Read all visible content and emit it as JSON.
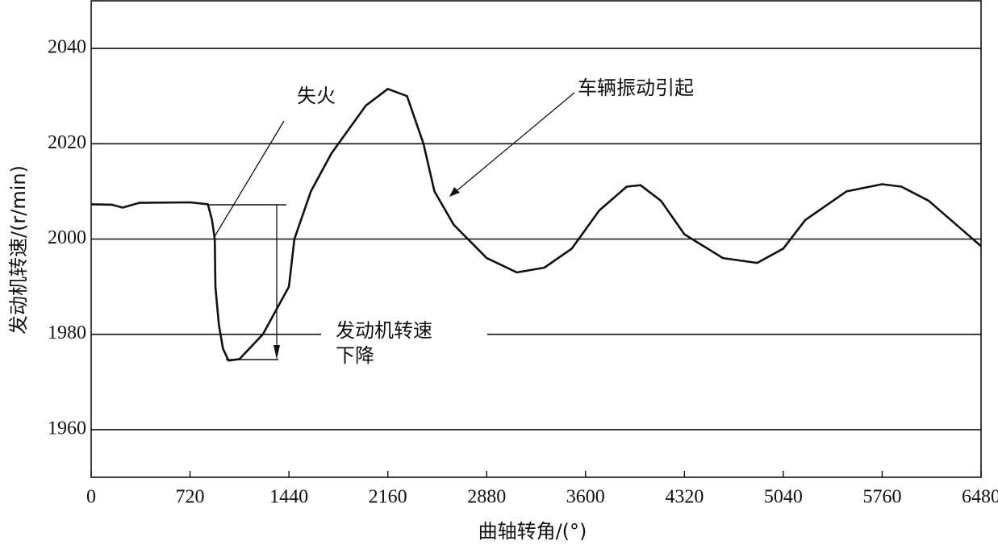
{
  "chart_data": {
    "type": "line",
    "x_label": "曲轴转角/(°)",
    "y_label": "发动机转速/(r/min)",
    "annotations": [
      "失火",
      "车辆振动引起",
      "发动机转速",
      "下降"
    ],
    "x": [
      0,
      150,
      230,
      350,
      720,
      850,
      880,
      900,
      905,
      930,
      960,
      1000,
      1080,
      1250,
      1440,
      1480,
      1600,
      1750,
      2000,
      2160,
      2300,
      2420,
      2500,
      2640,
      2880,
      3100,
      3300,
      3500,
      3700,
      3900,
      4000,
      4150,
      4320,
      4600,
      4850,
      5040,
      5200,
      5500,
      5760,
      5900,
      6100,
      6300,
      6480
    ],
    "values": [
      2007.3,
      2007.2,
      2006.6,
      2007.6,
      2007.7,
      2007.3,
      2004,
      2000,
      1990,
      1982,
      1977,
      1974.5,
      1974.8,
      1980,
      1990,
      2000,
      2010,
      2018,
      2028,
      2031.5,
      2030,
      2020,
      2010,
      2003,
      1996,
      1993,
      1994,
      1998,
      2006,
      2011,
      2011.3,
      2008,
      2001,
      1996,
      1995,
      1998,
      2004,
      2010,
      2011.5,
      2011,
      2008,
      2003,
      1998.5
    ],
    "color": "#111111",
    "xlim": [
      0,
      6480
    ],
    "xticks": [
      0,
      720,
      1440,
      2160,
      2880,
      3600,
      4320,
      5040,
      5760,
      6480
    ],
    "ylim": [
      1950,
      2050
    ],
    "yticks": [
      1960,
      1980,
      2000,
      2020,
      2040
    ],
    "grid": true
  }
}
